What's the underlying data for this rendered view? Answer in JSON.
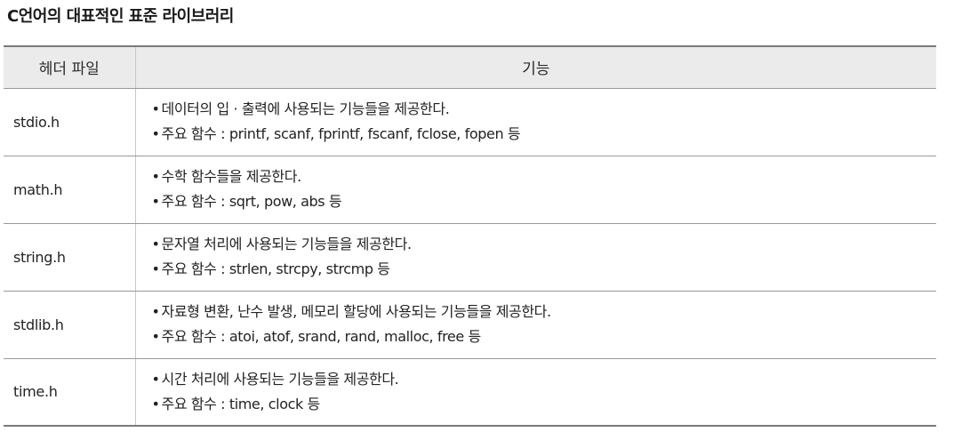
{
  "title": "C언어의 대표적인 표준 라이브러리",
  "table": {
    "headers": {
      "header_file": "헤더 파일",
      "function": "기능"
    },
    "bullet": "•",
    "rows": [
      {
        "header": "stdio.h",
        "line1": "데이터의 입 · 출력에 사용되는 기능들을 제공한다.",
        "line2": "주요 함수 : printf, scanf, fprintf, fscanf, fclose, fopen 등"
      },
      {
        "header": "math.h",
        "line1": "수학 함수들을 제공한다.",
        "line2": "주요 함수 : sqrt, pow, abs 등"
      },
      {
        "header": "string.h",
        "line1": "문자열 처리에 사용되는 기능들을 제공한다.",
        "line2": "주요 함수 : strlen, strcpy, strcmp 등"
      },
      {
        "header": "stdlib.h",
        "line1": "자료형 변환, 난수 발생, 메모리 할당에 사용되는 기능들을 제공한다.",
        "line2": "주요 함수 : atoi, atof, srand, rand, malloc, free 등"
      },
      {
        "header": "time.h",
        "line1": "시간 처리에 사용되는 기능들을 제공한다.",
        "line2": "주요 함수 : time, clock 등"
      }
    ]
  }
}
